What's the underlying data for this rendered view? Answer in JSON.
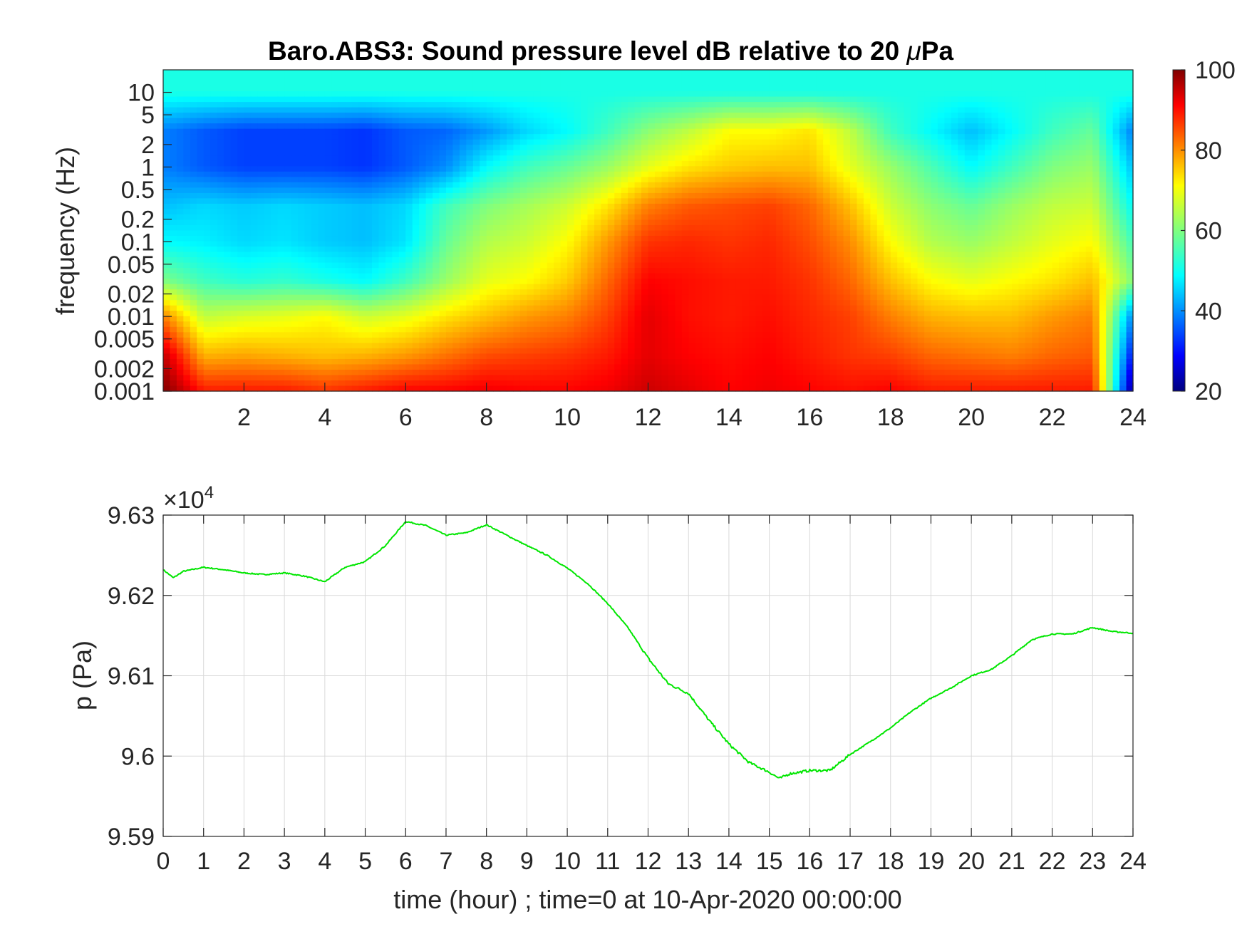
{
  "chart_data": [
    {
      "type": "heatmap",
      "title": "Baro.ABS3: Sound pressure level dB relative to 20 μPa",
      "title_parts": {
        "prefix": "Baro.ABS3: Sound pressure level dB relative to 20 ",
        "mu": "μ",
        "suffix": "Pa"
      },
      "xlabel": "",
      "ylabel": "frequency (Hz)",
      "xlim": [
        0,
        24
      ],
      "x_ticks": [
        "2",
        "4",
        "6",
        "8",
        "10",
        "12",
        "14",
        "16",
        "18",
        "20",
        "22",
        "24"
      ],
      "y_scale": "log",
      "ylim": [
        0.001,
        20
      ],
      "y_ticks": [
        "10",
        "5",
        "2",
        "1",
        "0.5",
        "0.2",
        "0.1",
        "0.05",
        "0.02",
        "0.01",
        "0.005",
        "0.002",
        "0.001"
      ],
      "colormap": "jet",
      "colorbar": {
        "min": 20,
        "max": 100,
        "ticks": [
          "100",
          "80",
          "60",
          "40",
          "20"
        ]
      },
      "time_hours": [
        0,
        1,
        2,
        3,
        4,
        5,
        6,
        7,
        8,
        9,
        10,
        11,
        12,
        13,
        14,
        15,
        16,
        17,
        18,
        19,
        20,
        21,
        22,
        23,
        24
      ],
      "frequency_hz": [
        10,
        3,
        1,
        0.3,
        0.1,
        0.03,
        0.01,
        0.003,
        0.001
      ],
      "spl_db": [
        [
          52,
          52,
          52,
          52,
          52,
          52,
          52,
          52,
          52,
          52,
          52,
          52,
          52,
          52,
          52,
          52,
          52,
          52,
          52,
          52,
          52,
          52,
          52,
          52,
          52
        ],
        [
          40,
          37,
          35,
          35,
          35,
          34,
          37,
          38,
          42,
          47,
          50,
          55,
          61,
          65,
          70,
          70,
          72,
          65,
          55,
          50,
          45,
          50,
          55,
          58,
          40
        ],
        [
          40,
          37,
          35,
          35,
          35,
          34,
          37,
          41,
          50,
          55,
          58,
          62,
          68,
          72,
          74,
          75,
          75,
          68,
          62,
          56,
          50,
          55,
          60,
          62,
          45
        ],
        [
          45,
          47,
          46,
          47,
          46,
          45,
          47,
          55,
          60,
          63,
          66,
          72,
          80,
          83,
          84,
          85,
          82,
          75,
          66,
          61,
          58,
          62,
          65,
          66,
          50
        ],
        [
          50,
          49,
          47,
          48,
          46,
          45,
          48,
          58,
          64,
          66,
          70,
          78,
          86,
          87,
          86,
          87,
          84,
          79,
          70,
          64,
          62,
          65,
          68,
          70,
          55
        ],
        [
          60,
          55,
          53,
          54,
          52,
          50,
          55,
          62,
          68,
          70,
          74,
          82,
          90,
          89,
          88,
          88,
          86,
          82,
          75,
          70,
          68,
          70,
          72,
          75,
          60
        ],
        [
          80,
          65,
          67,
          68,
          70,
          66,
          68,
          72,
          75,
          78,
          80,
          85,
          92,
          89,
          88,
          89,
          87,
          85,
          80,
          76,
          75,
          75,
          78,
          80,
          40
        ],
        [
          95,
          76,
          77,
          76,
          75,
          76,
          78,
          81,
          84,
          85,
          86,
          88,
          92,
          90,
          89,
          90,
          88,
          86,
          85,
          82,
          81,
          80,
          82,
          83,
          30
        ],
        [
          100,
          88,
          88,
          88,
          86,
          88,
          90,
          90,
          91,
          90,
          90,
          91,
          94,
          92,
          90,
          91,
          90,
          89,
          90,
          88,
          88,
          88,
          88,
          88,
          20
        ]
      ]
    },
    {
      "type": "line",
      "xlabel": "time (hour) ; time=0 at 10-Apr-2020 00:00:00",
      "ylabel": "p (Pa)",
      "exponent_label": {
        "base": "×10",
        "power": "4"
      },
      "xlim": [
        0,
        24
      ],
      "ylim": [
        95900,
        96300
      ],
      "x_ticks": [
        "0",
        "1",
        "2",
        "3",
        "4",
        "5",
        "6",
        "7",
        "8",
        "9",
        "10",
        "11",
        "12",
        "13",
        "14",
        "15",
        "16",
        "17",
        "18",
        "19",
        "20",
        "21",
        "22",
        "23",
        "24"
      ],
      "y_ticks": [
        "9.63",
        "9.62",
        "9.61",
        "9.6",
        "9.59"
      ],
      "grid": true,
      "line_color": "#00e600",
      "x": [
        0,
        0.25,
        0.5,
        1,
        1.5,
        2,
        2.5,
        3,
        3.5,
        4,
        4.5,
        5,
        5.5,
        6,
        6.5,
        7,
        7.5,
        8,
        8.5,
        9,
        9.5,
        10,
        10.5,
        11,
        11.5,
        12,
        12.5,
        13,
        13.5,
        14,
        14.5,
        15,
        15.25,
        15.5,
        16,
        16.5,
        17,
        17.5,
        18,
        18.5,
        19,
        19.5,
        20,
        20.5,
        21,
        21.5,
        22,
        22.5,
        23,
        23.5,
        24
      ],
      "y": [
        96232,
        96222,
        96230,
        96235,
        96232,
        96228,
        96226,
        96228,
        96224,
        96217,
        96235,
        96242,
        96262,
        96292,
        96287,
        96275,
        96278,
        96288,
        96275,
        96262,
        96250,
        96234,
        96215,
        96190,
        96160,
        96122,
        96090,
        96078,
        96045,
        96015,
        95992,
        95980,
        95972,
        95978,
        95982,
        95982,
        96002,
        96018,
        96035,
        96055,
        96072,
        96085,
        96100,
        96108,
        96125,
        96145,
        96152,
        96152,
        96160,
        96155,
        96153
      ]
    }
  ]
}
